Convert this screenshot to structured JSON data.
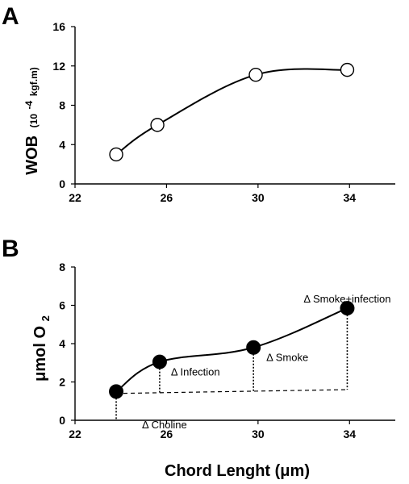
{
  "chart_data": [
    {
      "panel": "A",
      "type": "line",
      "marker": "open-circle",
      "x": [
        23.8,
        25.6,
        29.9,
        33.9
      ],
      "y": [
        3.0,
        6.0,
        11.1,
        11.6
      ],
      "xlim": [
        22,
        36
      ],
      "ylim": [
        0,
        16
      ],
      "xticks": [
        "22",
        "26",
        "30",
        "34"
      ],
      "yticks": [
        "0",
        "4",
        "8",
        "12",
        "16"
      ],
      "ylabel": "WOB",
      "yunit_prefix": "(10",
      "yunit_exp": "-4",
      "yunit_suffix": " kgf.m)",
      "xlabel": "",
      "grid": false
    },
    {
      "panel": "B",
      "type": "line",
      "marker": "filled-circle",
      "x": [
        23.8,
        25.7,
        29.8,
        33.9
      ],
      "y": [
        1.5,
        3.05,
        3.8,
        5.85
      ],
      "baseline": {
        "x": [
          23.8,
          33.9
        ],
        "y": [
          1.4,
          1.6
        ]
      },
      "xlim": [
        22,
        36
      ],
      "ylim": [
        0,
        8
      ],
      "xticks": [
        "22",
        "26",
        "30",
        "34"
      ],
      "yticks": [
        "0",
        "2",
        "4",
        "6",
        "8"
      ],
      "ylabel_main": "μmol O",
      "ylabel_sub": "2",
      "xlabel": "Chord Lenght (μm)",
      "grid": false,
      "annotations": [
        {
          "text": "Δ Choline",
          "x": 23.8,
          "y": -0.2
        },
        {
          "text": "Δ Infection",
          "x": 25.7,
          "y": 2.55
        },
        {
          "text": "Δ Smoke",
          "x": 29.8,
          "y": 3.3
        },
        {
          "text": "Δ Smoke+infection",
          "x": 33.9,
          "y": 6.35
        }
      ]
    }
  ]
}
